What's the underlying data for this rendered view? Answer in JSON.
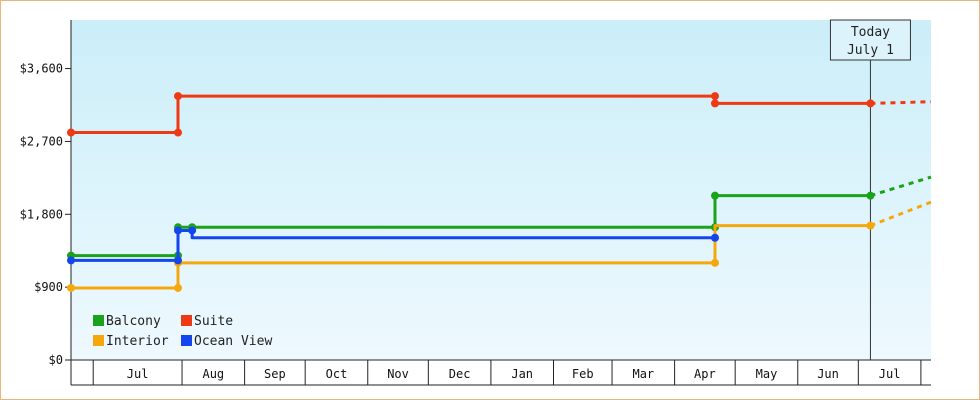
{
  "chart_data": {
    "type": "line",
    "step": true,
    "currency": "$",
    "x_start": "2019-06-01",
    "x_end": "2020-07-31",
    "ylim": [
      0,
      4200
    ],
    "yticks": [
      0,
      900,
      1800,
      2700,
      3600
    ],
    "ytick_labels": [
      "$0",
      "$900",
      "$1,800",
      "$2,700",
      "$3,600"
    ],
    "months": [
      "Jul",
      "Aug",
      "Sep",
      "Oct",
      "Nov",
      "Dec",
      "Jan",
      "Feb",
      "Mar",
      "Apr",
      "May",
      "Jun",
      "Jul"
    ],
    "month_boundaries": [
      "2019-06-12",
      "2019-07-26",
      "2019-08-26",
      "2019-09-25",
      "2019-10-26",
      "2019-11-25",
      "2019-12-26",
      "2020-01-26",
      "2020-02-24",
      "2020-03-26",
      "2020-04-25",
      "2020-05-26",
      "2020-06-25",
      "2020-07-26"
    ],
    "today": {
      "line1": "Today",
      "line2": "July 1",
      "date": "2020-07-01"
    },
    "legend_position": "bottom-left",
    "series": [
      {
        "name": "Balcony",
        "color": "#1aa31a",
        "points": [
          [
            "2019-06-01",
            1290
          ],
          [
            "2019-07-24",
            1290
          ],
          [
            "2019-07-24",
            1640
          ],
          [
            "2019-07-31",
            1640
          ],
          [
            "2020-04-15",
            1640
          ],
          [
            "2020-04-15",
            2030
          ],
          [
            "2020-07-01",
            2030
          ]
        ],
        "markers": [
          0,
          1,
          2,
          3,
          4,
          5,
          6
        ],
        "projection": [
          [
            "2020-07-01",
            2030
          ],
          [
            "2020-07-31",
            2260
          ]
        ]
      },
      {
        "name": "Suite",
        "color": "#ee3a12",
        "points": [
          [
            "2019-06-01",
            2810
          ],
          [
            "2019-07-24",
            2810
          ],
          [
            "2019-07-24",
            3260
          ],
          [
            "2020-04-15",
            3260
          ],
          [
            "2020-04-15",
            3170
          ],
          [
            "2020-07-01",
            3170
          ]
        ],
        "markers": [
          0,
          1,
          2,
          3,
          4,
          5
        ],
        "projection": [
          [
            "2020-07-01",
            3170
          ],
          [
            "2020-07-31",
            3190
          ]
        ]
      },
      {
        "name": "Interior",
        "color": "#f5a80c",
        "points": [
          [
            "2019-06-01",
            890
          ],
          [
            "2019-07-24",
            890
          ],
          [
            "2019-07-24",
            1200
          ],
          [
            "2020-04-15",
            1200
          ],
          [
            "2020-04-15",
            1660
          ],
          [
            "2020-07-01",
            1660
          ]
        ],
        "markers": [
          0,
          1,
          2,
          3,
          5
        ],
        "projection": [
          [
            "2020-07-01",
            1660
          ],
          [
            "2020-07-31",
            1950
          ]
        ]
      },
      {
        "name": "Ocean View",
        "color": "#1446ee",
        "points": [
          [
            "2019-06-01",
            1230
          ],
          [
            "2019-07-24",
            1230
          ],
          [
            "2019-07-24",
            1600
          ],
          [
            "2019-07-31",
            1600
          ],
          [
            "2019-07-31",
            1510
          ],
          [
            "2020-04-15",
            1510
          ]
        ],
        "markers": [
          0,
          1,
          2,
          3,
          5
        ]
      }
    ]
  }
}
